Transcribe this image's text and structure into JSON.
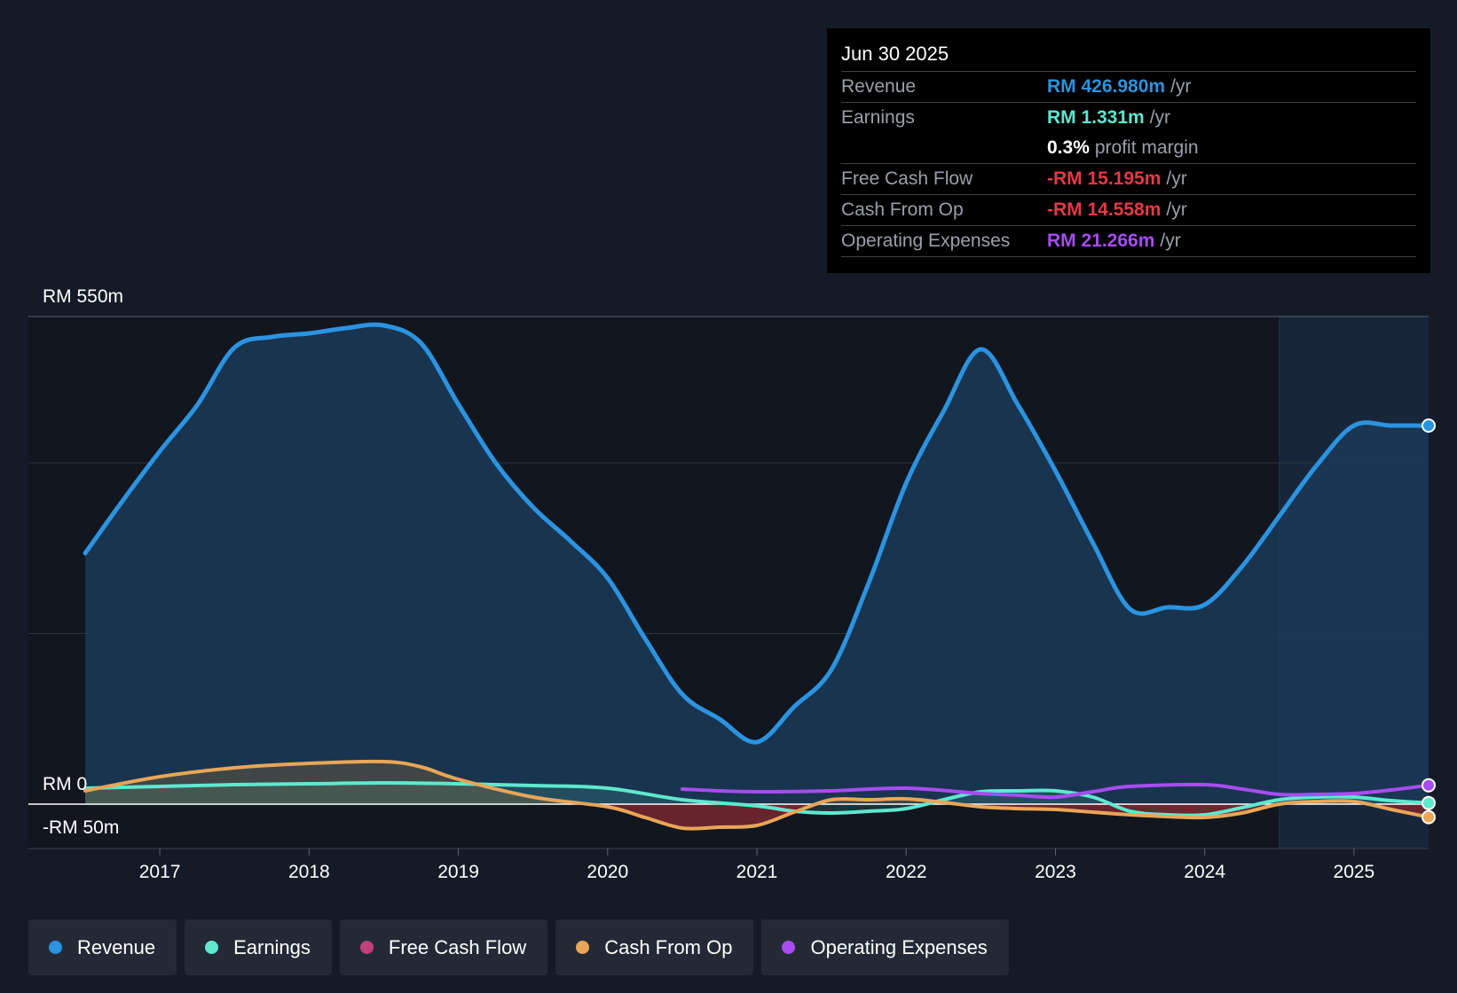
{
  "tooltip": {
    "date": "Jun 30 2025",
    "rows": [
      {
        "label": "Revenue",
        "value": "RM 426.980m",
        "unit": "/yr",
        "color": "#2b93e0"
      },
      {
        "label": "Earnings",
        "value": "RM 1.331m",
        "unit": "/yr",
        "color": "#5ee8cf"
      },
      {
        "label": "",
        "value": "0.3%",
        "unit": "profit margin",
        "color": "#ffffff"
      },
      {
        "label": "Free Cash Flow",
        "value": "-RM 15.195m",
        "unit": "/yr",
        "color": "#e63946"
      },
      {
        "label": "Cash From Op",
        "value": "-RM 14.558m",
        "unit": "/yr",
        "color": "#e63946"
      },
      {
        "label": "Operating Expenses",
        "value": "RM 21.266m",
        "unit": "/yr",
        "color": "#a64df0"
      }
    ]
  },
  "legend": [
    {
      "label": "Revenue",
      "color": "#2b93e0"
    },
    {
      "label": "Earnings",
      "color": "#5ee8cf"
    },
    {
      "label": "Free Cash Flow",
      "color": "#c2407a"
    },
    {
      "label": "Cash From Op",
      "color": "#e8a657"
    },
    {
      "label": "Operating Expenses",
      "color": "#a64df0"
    }
  ],
  "chart_data": {
    "type": "area",
    "title": "",
    "xlabel": "",
    "ylabel": "",
    "xlim": [
      2016.5,
      2025.5
    ],
    "ylim": [
      -50,
      550
    ],
    "y_tick_labels": [
      {
        "value": 550,
        "label": "RM 550m"
      },
      {
        "value": 0,
        "label": "RM 0"
      },
      {
        "value": -50,
        "label": "-RM 50m"
      }
    ],
    "x_ticks": [
      2017,
      2018,
      2019,
      2020,
      2021,
      2022,
      2023,
      2024,
      2025
    ],
    "x_tick_labels": [
      "2017",
      "2018",
      "2019",
      "2020",
      "2021",
      "2022",
      "2023",
      "2024",
      "2025"
    ],
    "highlight_start": 2024.5,
    "series": [
      {
        "name": "Revenue",
        "key": "revenue",
        "color": "#2b93e0",
        "fill": true,
        "points": [
          [
            2016.5,
            283
          ],
          [
            2016.75,
            342
          ],
          [
            2017.0,
            398
          ],
          [
            2017.25,
            450
          ],
          [
            2017.5,
            515
          ],
          [
            2017.75,
            527
          ],
          [
            2018.0,
            531
          ],
          [
            2018.25,
            537
          ],
          [
            2018.5,
            540
          ],
          [
            2018.75,
            520
          ],
          [
            2019.0,
            451
          ],
          [
            2019.25,
            385
          ],
          [
            2019.5,
            335
          ],
          [
            2019.75,
            297
          ],
          [
            2020.0,
            255
          ],
          [
            2020.25,
            187
          ],
          [
            2020.5,
            124
          ],
          [
            2020.75,
            96
          ],
          [
            2021.0,
            70
          ],
          [
            2021.25,
            110
          ],
          [
            2021.5,
            152
          ],
          [
            2021.75,
            250
          ],
          [
            2022.0,
            362
          ],
          [
            2022.25,
            443
          ],
          [
            2022.5,
            513
          ],
          [
            2022.75,
            450
          ],
          [
            2023.0,
            376
          ],
          [
            2023.25,
            295
          ],
          [
            2023.5,
            220
          ],
          [
            2023.75,
            222
          ],
          [
            2024.0,
            225
          ],
          [
            2024.25,
            268
          ],
          [
            2024.5,
            325
          ],
          [
            2024.75,
            382
          ],
          [
            2025.0,
            427
          ],
          [
            2025.25,
            427
          ],
          [
            2025.5,
            427
          ]
        ]
      },
      {
        "name": "Earnings",
        "key": "earnings",
        "color": "#5ee8cf",
        "fill": true,
        "points": [
          [
            2016.5,
            18
          ],
          [
            2017.0,
            20
          ],
          [
            2017.5,
            22
          ],
          [
            2018.0,
            23
          ],
          [
            2018.5,
            24
          ],
          [
            2019.0,
            23
          ],
          [
            2019.5,
            21
          ],
          [
            2020.0,
            18
          ],
          [
            2020.5,
            5
          ],
          [
            2021.0,
            -2
          ],
          [
            2021.25,
            -8
          ],
          [
            2021.5,
            -10
          ],
          [
            2021.75,
            -8
          ],
          [
            2022.0,
            -5
          ],
          [
            2022.25,
            5
          ],
          [
            2022.5,
            14
          ],
          [
            2022.75,
            15
          ],
          [
            2023.0,
            15
          ],
          [
            2023.25,
            8
          ],
          [
            2023.5,
            -8
          ],
          [
            2023.75,
            -12
          ],
          [
            2024.0,
            -12
          ],
          [
            2024.25,
            -4
          ],
          [
            2024.5,
            5
          ],
          [
            2024.75,
            8
          ],
          [
            2025.0,
            8
          ],
          [
            2025.25,
            4
          ],
          [
            2025.5,
            1.3
          ]
        ]
      },
      {
        "name": "Free Cash Flow",
        "key": "fcf",
        "color": "#c2407a",
        "fill": true,
        "points": [
          [
            2016.5,
            15
          ],
          [
            2017.0,
            31
          ],
          [
            2017.5,
            41
          ],
          [
            2018.0,
            46
          ],
          [
            2018.5,
            48
          ],
          [
            2018.75,
            42
          ],
          [
            2019.0,
            28
          ],
          [
            2019.5,
            8
          ],
          [
            2020.0,
            -3
          ],
          [
            2020.25,
            -15
          ],
          [
            2020.5,
            -27
          ],
          [
            2020.75,
            -26
          ],
          [
            2021.0,
            -24
          ],
          [
            2021.25,
            -9
          ],
          [
            2021.5,
            5
          ],
          [
            2021.75,
            5
          ],
          [
            2022.0,
            6
          ],
          [
            2022.25,
            2
          ],
          [
            2022.5,
            -3
          ],
          [
            2022.75,
            -5
          ],
          [
            2023.0,
            -6
          ],
          [
            2023.25,
            -9
          ],
          [
            2023.5,
            -12
          ],
          [
            2023.75,
            -14
          ],
          [
            2024.0,
            -15
          ],
          [
            2024.25,
            -10
          ],
          [
            2024.5,
            0
          ],
          [
            2024.75,
            3
          ],
          [
            2025.0,
            3
          ],
          [
            2025.25,
            -6
          ],
          [
            2025.5,
            -15.2
          ]
        ]
      },
      {
        "name": "Cash From Op",
        "key": "cfo",
        "color": "#e8a657",
        "fill": false,
        "points": [
          [
            2016.5,
            15
          ],
          [
            2017.0,
            31
          ],
          [
            2017.5,
            41
          ],
          [
            2018.0,
            46
          ],
          [
            2018.5,
            48
          ],
          [
            2018.75,
            42
          ],
          [
            2019.0,
            28
          ],
          [
            2019.5,
            8
          ],
          [
            2020.0,
            -3
          ],
          [
            2020.25,
            -15
          ],
          [
            2020.5,
            -27
          ],
          [
            2020.75,
            -26
          ],
          [
            2021.0,
            -24
          ],
          [
            2021.25,
            -9
          ],
          [
            2021.5,
            5
          ],
          [
            2021.75,
            5
          ],
          [
            2022.0,
            6
          ],
          [
            2022.25,
            2
          ],
          [
            2022.5,
            -3
          ],
          [
            2022.75,
            -5
          ],
          [
            2023.0,
            -6
          ],
          [
            2023.25,
            -9
          ],
          [
            2023.5,
            -12
          ],
          [
            2023.75,
            -14
          ],
          [
            2024.0,
            -15
          ],
          [
            2024.25,
            -10
          ],
          [
            2024.5,
            0
          ],
          [
            2024.75,
            3
          ],
          [
            2025.0,
            3
          ],
          [
            2025.25,
            -6
          ],
          [
            2025.5,
            -14.6
          ]
        ]
      },
      {
        "name": "Operating Expenses",
        "key": "opex",
        "color": "#a64df0",
        "fill": false,
        "points": [
          [
            2020.5,
            17
          ],
          [
            2020.75,
            15
          ],
          [
            2021.0,
            14
          ],
          [
            2021.5,
            15
          ],
          [
            2022.0,
            18
          ],
          [
            2022.5,
            12
          ],
          [
            2022.75,
            10
          ],
          [
            2023.0,
            8
          ],
          [
            2023.25,
            14
          ],
          [
            2023.5,
            20
          ],
          [
            2024.0,
            22
          ],
          [
            2024.25,
            17
          ],
          [
            2024.5,
            11
          ],
          [
            2024.75,
            11
          ],
          [
            2025.0,
            12
          ],
          [
            2025.25,
            16
          ],
          [
            2025.5,
            21.3
          ]
        ]
      }
    ]
  }
}
